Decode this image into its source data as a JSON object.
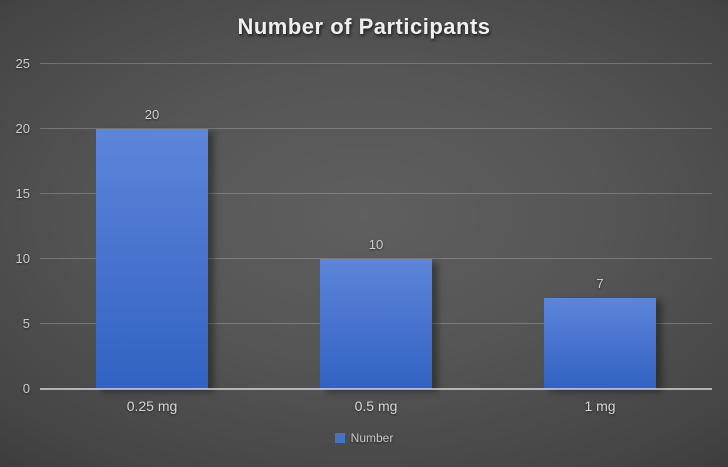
{
  "title": "Number of Participants",
  "legend": {
    "label": "Number",
    "swatch_color": "#4472c4"
  },
  "colors": {
    "bar_top": "#5d85da",
    "bar_bottom": "#3262c2",
    "background_center": "#5f5f5f",
    "background_edge": "#242424",
    "axis_text": "#cbcbcb",
    "gridline": "rgba(220,220,220,0.28)",
    "axis_line": "rgba(235,235,235,0.65)"
  },
  "chart_data": {
    "type": "bar",
    "title": "Number of Participants",
    "categories": [
      "0.25 mg",
      "0.5 mg",
      "1 mg"
    ],
    "series": [
      {
        "name": "Number",
        "values": [
          20,
          10,
          7
        ]
      }
    ],
    "data_labels": [
      "20",
      "10",
      "7"
    ],
    "xlabel": "",
    "ylabel": "",
    "ylim": [
      0,
      25
    ],
    "yticks": [
      0,
      5,
      10,
      15,
      20,
      25
    ],
    "grid": true,
    "legend_position": "bottom"
  }
}
